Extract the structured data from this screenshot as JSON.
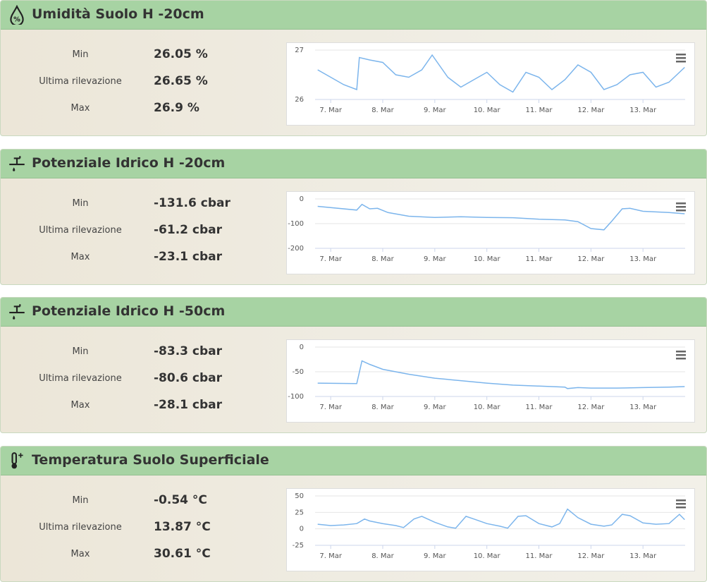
{
  "panels": [
    {
      "title": "Umidità Suolo H -20cm",
      "stats": [
        {
          "label": "Min",
          "value": "26.05 %"
        },
        {
          "label": "Ultima rilevazione",
          "value": "26.65 %"
        },
        {
          "label": "Max",
          "value": "26.9 %"
        }
      ],
      "chart": {
        "type": "line",
        "x": [
          6.75,
          7.0,
          7.25,
          7.5,
          7.55,
          7.75,
          8.0,
          8.25,
          8.5,
          8.75,
          8.95,
          9.25,
          9.5,
          9.75,
          10.0,
          10.25,
          10.5,
          10.75,
          11.0,
          11.25,
          11.5,
          11.75,
          12.0,
          12.25,
          12.5,
          12.75,
          13.0,
          13.25,
          13.5,
          13.8
        ],
        "series": [
          {
            "color": "#7cb5ec",
            "values": [
              26.6,
              26.45,
              26.3,
              26.2,
              26.85,
              26.8,
              26.75,
              26.5,
              26.45,
              26.6,
              26.9,
              26.45,
              26.25,
              26.4,
              26.55,
              26.3,
              26.15,
              26.55,
              26.45,
              26.2,
              26.4,
              26.7,
              26.55,
              26.2,
              26.3,
              26.5,
              26.55,
              26.25,
              26.35,
              26.65
            ]
          }
        ],
        "xlim": [
          6.7,
          13.81
        ],
        "ylim": [
          26,
          27
        ],
        "yticks": [
          26,
          27
        ],
        "xticks": [
          {
            "value": 7,
            "label": "7. Mar"
          },
          {
            "value": 8,
            "label": "8. Mar"
          },
          {
            "value": 9,
            "label": "9. Mar"
          },
          {
            "value": 10,
            "label": "10. Mar"
          },
          {
            "value": 11,
            "label": "11. Mar"
          },
          {
            "value": 12,
            "label": "12. Mar"
          },
          {
            "value": 13,
            "label": "13. Mar"
          }
        ]
      }
    },
    {
      "title": "Potenziale Idrico H -20cm",
      "stats": [
        {
          "label": "Min",
          "value": "-131.6 cbar"
        },
        {
          "label": "Ultima rilevazione",
          "value": "-61.2 cbar"
        },
        {
          "label": "Max",
          "value": "-23.1 cbar"
        }
      ],
      "chart": {
        "type": "line",
        "x": [
          6.75,
          7.5,
          7.6,
          7.75,
          7.9,
          8.1,
          8.5,
          9.0,
          9.5,
          10.0,
          10.5,
          11.0,
          11.5,
          11.75,
          12.0,
          12.25,
          12.4,
          12.6,
          12.75,
          13.0,
          13.5,
          13.8
        ],
        "series": [
          {
            "color": "#7cb5ec",
            "values": [
              -30,
              -45,
              -22,
              -40,
              -38,
              -55,
              -70,
              -75,
              -72,
              -75,
              -76,
              -82,
              -85,
              -92,
              -120,
              -125,
              -90,
              -40,
              -38,
              -50,
              -55,
              -60
            ]
          }
        ],
        "xlim": [
          6.7,
          13.81
        ],
        "ylim": [
          -200,
          0
        ],
        "yticks": [
          -200,
          -100,
          0
        ],
        "xticks": [
          {
            "value": 7,
            "label": "7. Mar"
          },
          {
            "value": 8,
            "label": "8. Mar"
          },
          {
            "value": 9,
            "label": "9. Mar"
          },
          {
            "value": 10,
            "label": "10. Mar"
          },
          {
            "value": 11,
            "label": "11. Mar"
          },
          {
            "value": 12,
            "label": "12. Mar"
          },
          {
            "value": 13,
            "label": "13. Mar"
          }
        ]
      }
    },
    {
      "title": "Potenziale Idrico H -50cm",
      "stats": [
        {
          "label": "Min",
          "value": "-83.3 cbar"
        },
        {
          "label": "Ultima rilevazione",
          "value": "-80.6 cbar"
        },
        {
          "label": "Max",
          "value": "-28.1 cbar"
        }
      ],
      "chart": {
        "type": "line",
        "x": [
          6.75,
          7.5,
          7.6,
          7.75,
          8.0,
          8.5,
          9.0,
          9.5,
          10.0,
          10.5,
          11.0,
          11.5,
          11.55,
          11.75,
          12.0,
          12.5,
          13.0,
          13.5,
          13.8
        ],
        "series": [
          {
            "color": "#7cb5ec",
            "values": [
              -73,
              -74,
              -28,
              -35,
              -45,
              -55,
              -63,
              -68,
              -73,
              -77,
              -79,
              -81,
              -84,
              -82,
              -83,
              -83,
              -82,
              -81,
              -80
            ]
          }
        ],
        "xlim": [
          6.7,
          13.81
        ],
        "ylim": [
          -100,
          0
        ],
        "yticks": [
          -100,
          -50,
          0
        ],
        "xticks": [
          {
            "value": 7,
            "label": "7. Mar"
          },
          {
            "value": 8,
            "label": "8. Mar"
          },
          {
            "value": 9,
            "label": "9. Mar"
          },
          {
            "value": 10,
            "label": "10. Mar"
          },
          {
            "value": 11,
            "label": "11. Mar"
          },
          {
            "value": 12,
            "label": "12. Mar"
          },
          {
            "value": 13,
            "label": "13. Mar"
          }
        ]
      }
    },
    {
      "title": "Temperatura Suolo Superficiale",
      "stats": [
        {
          "label": "Min",
          "value": "-0.54 °C"
        },
        {
          "label": "Ultima rilevazione",
          "value": "13.87 °C"
        },
        {
          "label": "Max",
          "value": "30.61 °C"
        }
      ],
      "chart": {
        "type": "line",
        "x": [
          6.75,
          7.0,
          7.25,
          7.5,
          7.65,
          7.75,
          8.0,
          8.25,
          8.4,
          8.6,
          8.75,
          9.0,
          9.25,
          9.4,
          9.6,
          9.75,
          10.0,
          10.25,
          10.4,
          10.6,
          10.75,
          11.0,
          11.25,
          11.4,
          11.55,
          11.75,
          12.0,
          12.25,
          12.4,
          12.6,
          12.75,
          13.0,
          13.25,
          13.5,
          13.7,
          13.8
        ],
        "series": [
          {
            "color": "#7cb5ec",
            "values": [
              7,
              5,
              6,
              8,
              15,
              12,
              8,
              5,
              2,
              15,
              19,
              10,
              3,
              1,
              19,
              15,
              8,
              4,
              1,
              19,
              20,
              8,
              3,
              8,
              30,
              17,
              7,
              4,
              6,
              22,
              20,
              9,
              7,
              8,
              22,
              14
            ]
          }
        ],
        "xlim": [
          6.7,
          13.81
        ],
        "ylim": [
          -25,
          50
        ],
        "yticks": [
          -25,
          0,
          25,
          50
        ],
        "xticks": [
          {
            "value": 7,
            "label": "7. Mar"
          },
          {
            "value": 8,
            "label": "8. Mar"
          },
          {
            "value": 9,
            "label": "9. Mar"
          },
          {
            "value": 10,
            "label": "10. Mar"
          },
          {
            "value": 11,
            "label": "11. Mar"
          },
          {
            "value": 12,
            "label": "12. Mar"
          },
          {
            "value": 13,
            "label": "13. Mar"
          }
        ]
      }
    }
  ]
}
